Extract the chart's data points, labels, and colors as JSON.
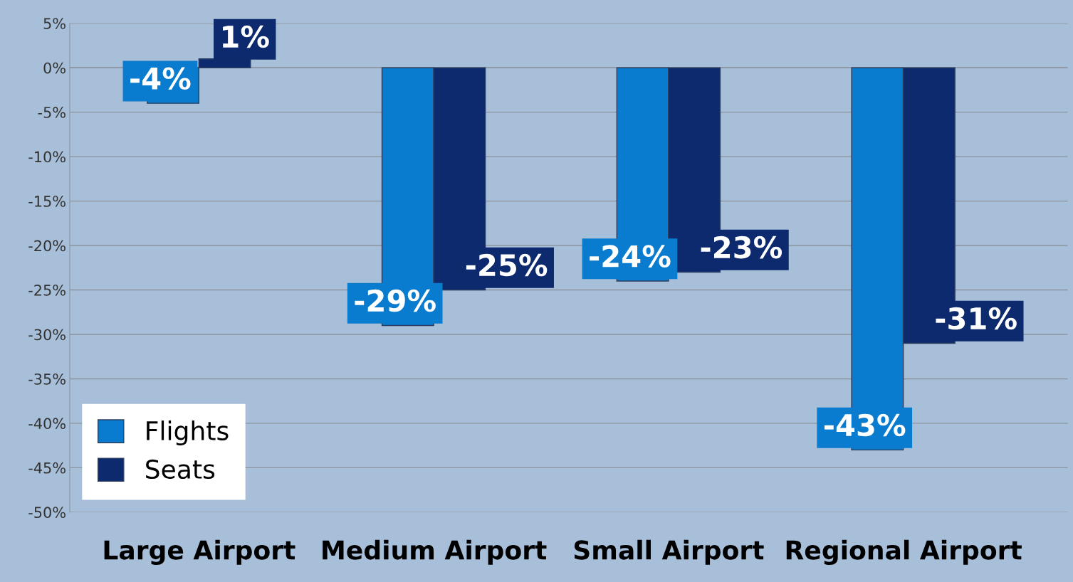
{
  "chart_data": {
    "type": "bar",
    "categories": [
      "Large Airport",
      "Medium Airport",
      "Small Airport",
      "Regional Airport"
    ],
    "series": [
      {
        "name": "Flights",
        "color": "#0a7ccf",
        "values": [
          -4,
          -29,
          -24,
          -43
        ],
        "value_labels": [
          "-4%",
          "-29%",
          "-24%",
          "-43%"
        ]
      },
      {
        "name": "Seats",
        "color": "#0d2a6e",
        "values": [
          1,
          -25,
          -23,
          -31
        ],
        "value_labels": [
          "1%",
          "-25%",
          "-23%",
          "-31%"
        ]
      }
    ],
    "ylim": [
      -50,
      5
    ],
    "yticks": [
      {
        "value": 5,
        "label": "5%"
      },
      {
        "value": 0,
        "label": "0%"
      },
      {
        "value": -5,
        "label": "-5%"
      },
      {
        "value": -10,
        "label": "-10%"
      },
      {
        "value": -15,
        "label": "-15%"
      },
      {
        "value": -20,
        "label": "-20%"
      },
      {
        "value": -25,
        "label": "-25%"
      },
      {
        "value": -30,
        "label": "-30%"
      },
      {
        "value": -35,
        "label": "-35%"
      },
      {
        "value": -40,
        "label": "-40%"
      },
      {
        "value": -45,
        "label": "-45%"
      },
      {
        "value": -50,
        "label": "-50%"
      }
    ],
    "grid": "y",
    "legend": "bottom left"
  }
}
